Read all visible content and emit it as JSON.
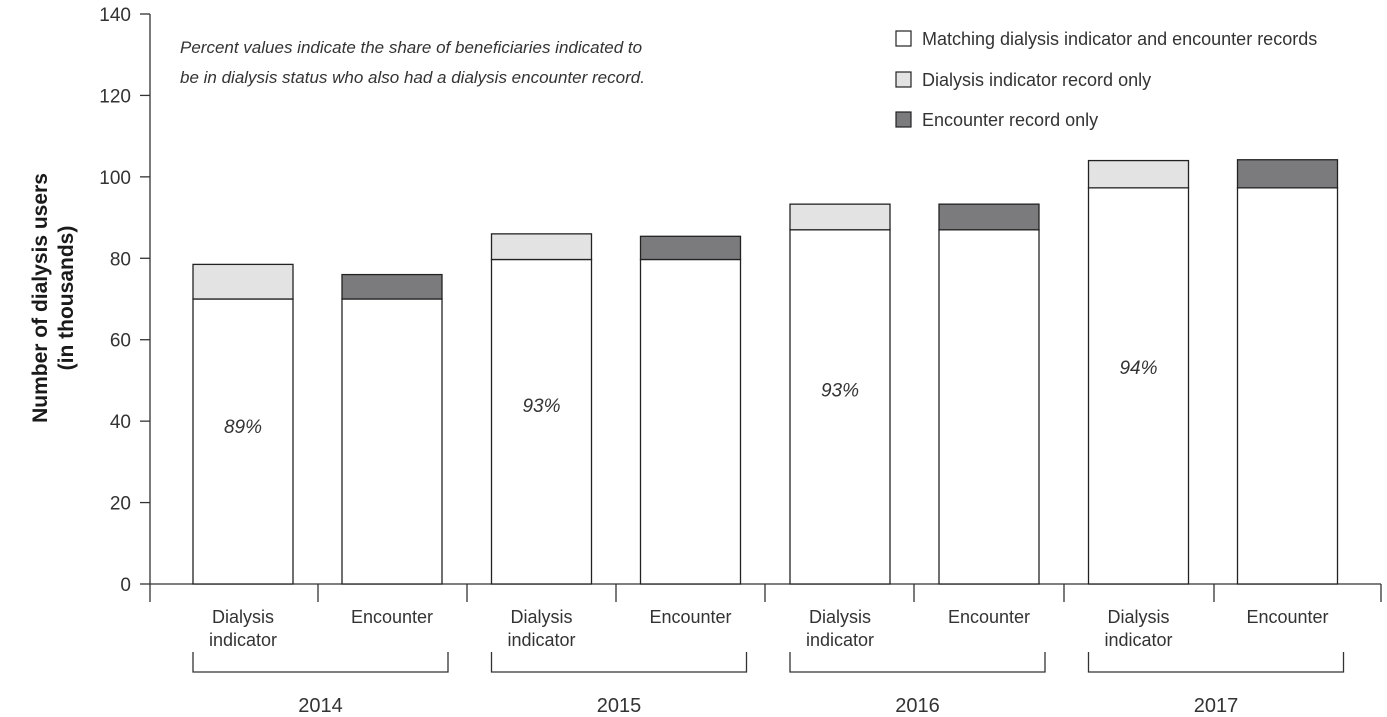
{
  "chart_data": {
    "type": "bar",
    "stacked": true,
    "ylabel_lines": [
      "Number of dialysis users",
      "(in thousands)"
    ],
    "ylim": [
      0,
      140
    ],
    "yticks": [
      0,
      20,
      40,
      60,
      80,
      100,
      120,
      140
    ],
    "grid": false,
    "legend_position": "top-right",
    "note_lines": [
      "Percent values indicate the share of beneficiaries indicated to",
      "be in dialysis status who also had a dialysis encounter record."
    ],
    "series": [
      {
        "name": "Matching dialysis indicator and encounter records",
        "color": "#ffffff"
      },
      {
        "name": "Dialysis indicator record only",
        "color": "#e3e3e3"
      },
      {
        "name": "Encounter record only",
        "color": "#7b7b7d"
      }
    ],
    "groups": [
      {
        "year": "2014",
        "bars": [
          {
            "label_lines": [
              "Dialysis",
              "indicator"
            ],
            "matching": 70,
            "only": 8.5,
            "only_series": "Dialysis indicator record only",
            "pct": "89%"
          },
          {
            "label_lines": [
              "Encounter"
            ],
            "matching": 70,
            "only": 6,
            "only_series": "Encounter record only",
            "pct": ""
          }
        ]
      },
      {
        "year": "2015",
        "bars": [
          {
            "label_lines": [
              "Dialysis",
              "indicator"
            ],
            "matching": 79.7,
            "only": 6.3,
            "only_series": "Dialysis indicator record only",
            "pct": "93%"
          },
          {
            "label_lines": [
              "Encounter"
            ],
            "matching": 79.7,
            "only": 5.7,
            "only_series": "Encounter record only",
            "pct": ""
          }
        ]
      },
      {
        "year": "2016",
        "bars": [
          {
            "label_lines": [
              "Dialysis",
              "indicator"
            ],
            "matching": 87,
            "only": 6.3,
            "only_series": "Dialysis indicator record only",
            "pct": "93%"
          },
          {
            "label_lines": [
              "Encounter"
            ],
            "matching": 87,
            "only": 6.3,
            "only_series": "Encounter record only",
            "pct": ""
          }
        ]
      },
      {
        "year": "2017",
        "bars": [
          {
            "label_lines": [
              "Dialysis",
              "indicator"
            ],
            "matching": 97.3,
            "only": 6.7,
            "only_series": "Dialysis indicator record only",
            "pct": "94%"
          },
          {
            "label_lines": [
              "Encounter"
            ],
            "matching": 97.3,
            "only": 6.9,
            "only_series": "Encounter record only",
            "pct": ""
          }
        ]
      }
    ]
  }
}
